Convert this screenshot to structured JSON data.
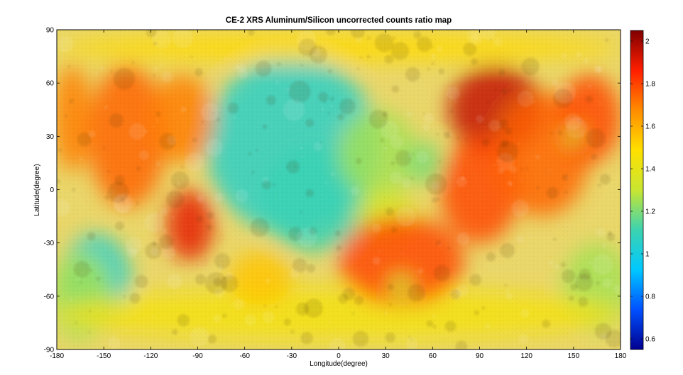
{
  "chart_data": {
    "type": "heatmap",
    "title": "CE-2 XRS Aluminum/Silicon uncorrected counts ratio map",
    "xlabel": "Longitude(degree)",
    "ylabel": "Latitude(degree)",
    "xlim": [
      -180,
      180
    ],
    "ylim": [
      -90,
      90
    ],
    "x_ticks": [
      -180,
      -150,
      -120,
      -90,
      -60,
      -30,
      0,
      30,
      60,
      90,
      120,
      150,
      180
    ],
    "y_ticks": [
      -90,
      -60,
      -30,
      0,
      30,
      60,
      90
    ],
    "colorbar": {
      "range": [
        0.55,
        2.05
      ],
      "ticks": [
        0.6,
        0.8,
        1,
        1.2,
        1.4,
        1.6,
        1.8,
        2
      ],
      "colormap": [
        "#00008f",
        "#0050ff",
        "#00c8ff",
        "#3cd3b0",
        "#c8e632",
        "#ffe000",
        "#ff8c00",
        "#ff1e00",
        "#7f0000"
      ]
    },
    "regions": [
      {
        "lon": -30,
        "lat": 25,
        "value": 1.05,
        "rx": 55,
        "ry": 50
      },
      {
        "lon": -15,
        "lat": -5,
        "value": 1.1,
        "rx": 35,
        "ry": 30
      },
      {
        "lon": 25,
        "lat": 20,
        "value": 1.25,
        "rx": 25,
        "ry": 25
      },
      {
        "lon": 55,
        "lat": 15,
        "value": 1.2,
        "rx": 12,
        "ry": 12
      },
      {
        "lon": 30,
        "lat": -15,
        "value": 1.35,
        "rx": 20,
        "ry": 15
      },
      {
        "lon": -155,
        "lat": -50,
        "value": 1.05,
        "rx": 22,
        "ry": 25
      },
      {
        "lon": -165,
        "lat": -60,
        "value": 1.25,
        "rx": 20,
        "ry": 25
      },
      {
        "lon": 165,
        "lat": -55,
        "value": 1.25,
        "rx": 22,
        "ry": 25
      },
      {
        "lon": 0,
        "lat": -70,
        "value": 1.45,
        "rx": 180,
        "ry": 15
      },
      {
        "lon": 0,
        "lat": 80,
        "value": 1.5,
        "rx": 180,
        "ry": 8
      },
      {
        "lon": 100,
        "lat": 45,
        "value": 1.95,
        "rx": 30,
        "ry": 25
      },
      {
        "lon": 90,
        "lat": 0,
        "value": 1.8,
        "rx": 25,
        "ry": 30
      },
      {
        "lon": 130,
        "lat": 20,
        "value": 1.75,
        "rx": 30,
        "ry": 35
      },
      {
        "lon": -95,
        "lat": -20,
        "value": 1.9,
        "rx": 15,
        "ry": 20
      },
      {
        "lon": -135,
        "lat": 30,
        "value": 1.75,
        "rx": 25,
        "ry": 40
      },
      {
        "lon": -100,
        "lat": 40,
        "value": 1.7,
        "rx": 20,
        "ry": 25
      },
      {
        "lon": 40,
        "lat": -40,
        "value": 1.8,
        "rx": 40,
        "ry": 25
      },
      {
        "lon": -50,
        "lat": -50,
        "value": 1.55,
        "rx": 20,
        "ry": 15
      },
      {
        "lon": -170,
        "lat": 40,
        "value": 1.7,
        "rx": 12,
        "ry": 30
      },
      {
        "lon": 160,
        "lat": 40,
        "value": 1.8,
        "rx": 20,
        "ry": 25
      },
      {
        "lon": 150,
        "lat": 30,
        "value": 1.3,
        "rx": 6,
        "ry": 6
      },
      {
        "lon": 40,
        "lat": -55,
        "value": 1.3,
        "rx": 8,
        "ry": 7
      }
    ]
  }
}
